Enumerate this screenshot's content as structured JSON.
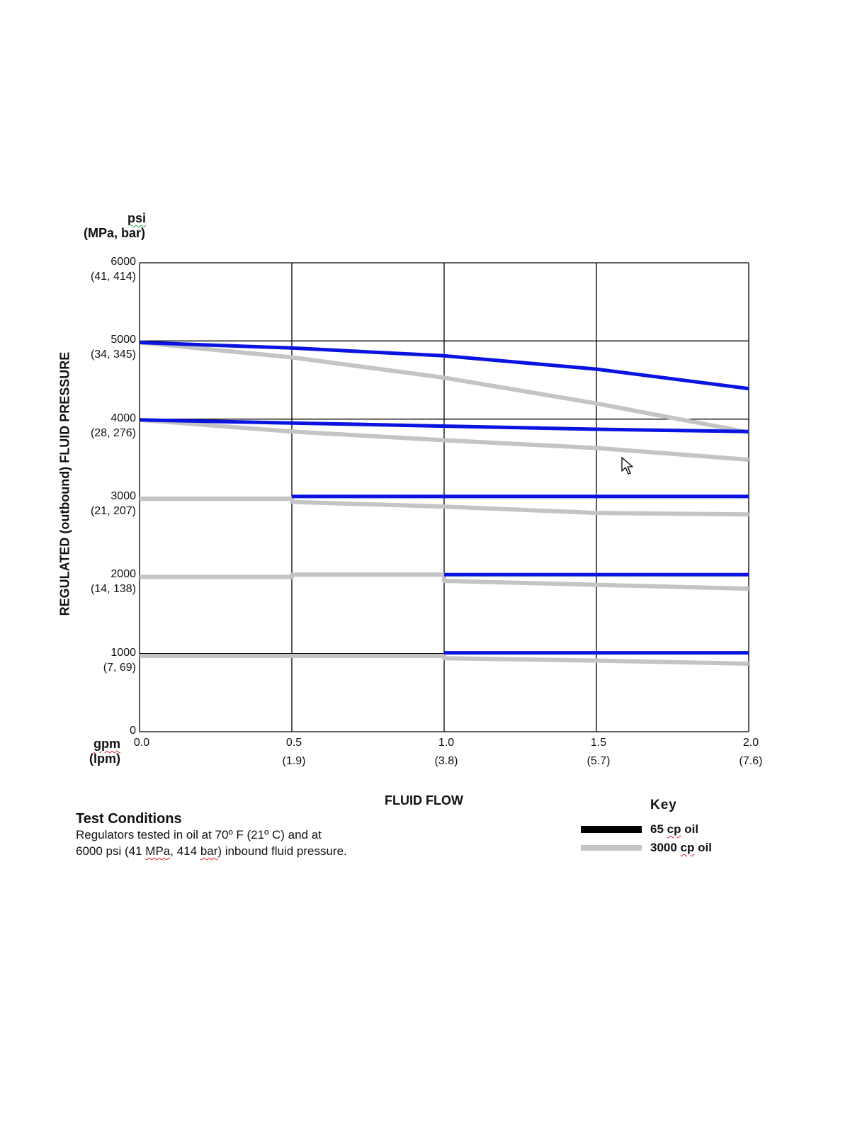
{
  "y_units": {
    "primary": "psi",
    "secondary": "(MPa, bar)"
  },
  "x_units": {
    "primary": "gpm",
    "secondary": "(lpm)"
  },
  "y_ticks": [
    {
      "value": 6000,
      "label": "6000",
      "sub": "(41, 414)"
    },
    {
      "value": 5000,
      "label": "5000",
      "sub": "(34, 345)"
    },
    {
      "value": 4000,
      "label": "4000",
      "sub": "(28, 276)"
    },
    {
      "value": 3000,
      "label": "3000",
      "sub": "(21, 207)"
    },
    {
      "value": 2000,
      "label": "2000",
      "sub": "(14, 138)"
    },
    {
      "value": 1000,
      "label": "1000",
      "sub": "(7, 69)"
    },
    {
      "value": 0,
      "label": "0",
      "sub": ""
    }
  ],
  "x_ticks": [
    {
      "value": 0.0,
      "label": "0.0",
      "sub": ""
    },
    {
      "value": 0.5,
      "label": "0.5",
      "sub": "(1.9)"
    },
    {
      "value": 1.0,
      "label": "1.0",
      "sub": "(3.8)"
    },
    {
      "value": 1.5,
      "label": "1.5",
      "sub": "(5.7)"
    },
    {
      "value": 2.0,
      "label": "2.0",
      "sub": "(7.6)"
    }
  ],
  "chart_data": {
    "type": "line",
    "ylabel": "REGULATED (outbound) FLUID PRESSURE",
    "xlabel": "FLUID FLOW",
    "xlim": [
      0,
      2.0
    ],
    "ylim": [
      0,
      6000
    ],
    "grid": true,
    "legend_position": "bottom-right",
    "series": [
      {
        "name": "65 cp oil",
        "color": "#0a14e0",
        "points": [
          [
            0.0,
            4980
          ],
          [
            0.5,
            4910
          ],
          [
            1.0,
            4810
          ],
          [
            1.5,
            4640
          ],
          [
            2.0,
            4390
          ]
        ]
      },
      {
        "name": "3000 cp oil",
        "color": "#c4c4c4",
        "points": [
          [
            0.0,
            4980
          ],
          [
            0.5,
            4790
          ],
          [
            1.0,
            4530
          ],
          [
            1.5,
            4200
          ],
          [
            2.0,
            3830
          ]
        ]
      },
      {
        "name": "65 cp oil",
        "color": "#0a14e0",
        "points": [
          [
            0.0,
            3990
          ],
          [
            0.5,
            3950
          ],
          [
            1.0,
            3910
          ],
          [
            1.5,
            3870
          ],
          [
            2.0,
            3840
          ]
        ]
      },
      {
        "name": "3000 cp oil",
        "color": "#c4c4c4",
        "points": [
          [
            0.0,
            3990
          ],
          [
            0.5,
            3840
          ],
          [
            1.0,
            3730
          ],
          [
            1.5,
            3630
          ],
          [
            2.0,
            3480
          ]
        ]
      },
      {
        "name": "65 cp oil",
        "color": "#0a14e0",
        "points": [
          [
            0.5,
            3010
          ],
          [
            2.0,
            3010
          ]
        ]
      },
      {
        "name": "3000 cp oil",
        "color": "#c4c4c4",
        "points": [
          [
            0.0,
            2980
          ],
          [
            0.5,
            2980
          ],
          [
            0.5,
            2940
          ],
          [
            1.0,
            2880
          ],
          [
            1.5,
            2800
          ],
          [
            2.0,
            2780
          ]
        ]
      },
      {
        "name": "65 cp oil",
        "color": "#0a14e0",
        "points": [
          [
            1.0,
            2010
          ],
          [
            2.0,
            2010
          ]
        ]
      },
      {
        "name": "3000 cp oil",
        "color": "#c4c4c4",
        "points": [
          [
            0.0,
            1980
          ],
          [
            0.5,
            1980
          ],
          [
            0.5,
            2010
          ],
          [
            1.0,
            2010
          ],
          [
            1.0,
            1930
          ],
          [
            1.5,
            1880
          ],
          [
            2.0,
            1830
          ]
        ]
      },
      {
        "name": "65 cp oil",
        "color": "#0a14e0",
        "points": [
          [
            1.0,
            1010
          ],
          [
            2.0,
            1010
          ]
        ]
      },
      {
        "name": "3000 cp oil",
        "color": "#c4c4c4",
        "points": [
          [
            0.0,
            970
          ],
          [
            1.0,
            970
          ],
          [
            1.0,
            940
          ],
          [
            1.5,
            910
          ],
          [
            2.0,
            870
          ]
        ]
      }
    ]
  },
  "test_conditions": {
    "title": "Test Conditions",
    "line1": "Regulators tested in oil at 70º F (21º C) and at",
    "line2_pre": "6000 psi (41 ",
    "line2_mpa": "MPa",
    "line2_mid": ", 414 ",
    "line2_bar": "bar",
    "line2_post": ") inbound fluid pressure."
  },
  "key": {
    "title": "Key",
    "items": [
      {
        "label_num": "65 ",
        "label_cp": "cp",
        "label_rest": " oil",
        "color": "#000000"
      },
      {
        "label_num": "3000 ",
        "label_cp": "cp",
        "label_rest": " oil",
        "color": "#c4c4c4"
      }
    ]
  }
}
